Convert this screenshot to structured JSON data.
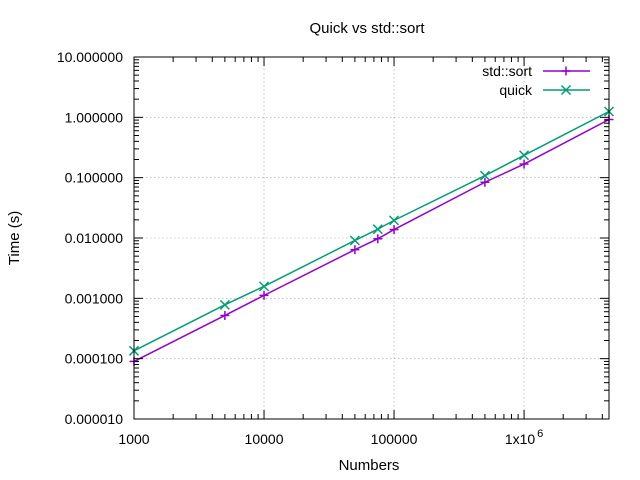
{
  "chart_data": {
    "type": "line",
    "title": "Quick vs std::sort",
    "xlabel": "Numbers",
    "ylabel": "Time (s)",
    "x_scale": "log",
    "y_scale": "log",
    "xlim": [
      1000,
      4500000
    ],
    "ylim": [
      1e-05,
      10
    ],
    "grid": true,
    "legend_position": "top-right",
    "x_ticks": [
      {
        "value": 1000,
        "label": "1000"
      },
      {
        "value": 10000,
        "label": "10000"
      },
      {
        "value": 100000,
        "label": "100000"
      },
      {
        "value": 1000000,
        "label": "1x10",
        "sup": "6"
      }
    ],
    "y_ticks": [
      {
        "value": 1e-05,
        "label": "0.000010"
      },
      {
        "value": 0.0001,
        "label": "0.000100"
      },
      {
        "value": 0.001,
        "label": "0.001000"
      },
      {
        "value": 0.01,
        "label": "0.010000"
      },
      {
        "value": 0.1,
        "label": "0.100000"
      },
      {
        "value": 1,
        "label": "1.000000"
      },
      {
        "value": 10,
        "label": "10.000000"
      }
    ],
    "series": [
      {
        "name": "std::sort",
        "color": "#9400d3",
        "marker": "plus",
        "points": [
          {
            "x": 1000,
            "y": 9e-05
          },
          {
            "x": 5000,
            "y": 0.00052
          },
          {
            "x": 10000,
            "y": 0.00112
          },
          {
            "x": 50000,
            "y": 0.0064
          },
          {
            "x": 75000,
            "y": 0.0097
          },
          {
            "x": 100000,
            "y": 0.0138
          },
          {
            "x": 500000,
            "y": 0.084
          },
          {
            "x": 1000000,
            "y": 0.168
          },
          {
            "x": 4500000,
            "y": 0.92
          }
        ]
      },
      {
        "name": "quick",
        "color": "#009e73",
        "marker": "cross",
        "points": [
          {
            "x": 1000,
            "y": 0.000135
          },
          {
            "x": 5000,
            "y": 0.00078
          },
          {
            "x": 10000,
            "y": 0.00158
          },
          {
            "x": 50000,
            "y": 0.0091
          },
          {
            "x": 75000,
            "y": 0.014
          },
          {
            "x": 100000,
            "y": 0.0196
          },
          {
            "x": 500000,
            "y": 0.108
          },
          {
            "x": 1000000,
            "y": 0.235
          },
          {
            "x": 4500000,
            "y": 1.25
          }
        ]
      }
    ]
  }
}
